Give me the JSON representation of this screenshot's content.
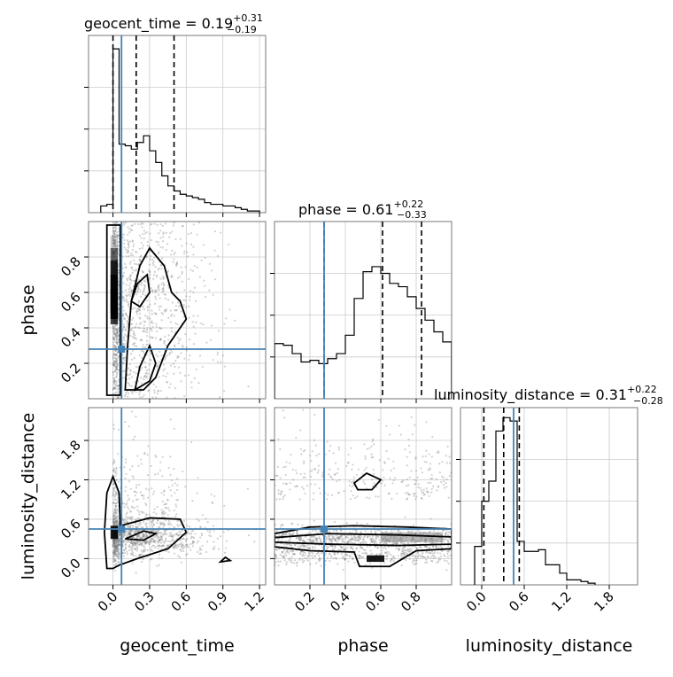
{
  "colors": {
    "truth": "#4682b4",
    "hist": "#000000",
    "grid": "#cccccc",
    "scatter": "#7a7a7a"
  },
  "chart_data": [
    {
      "type": "histogram",
      "param": "geocent_time",
      "title_main": "geocent_time = 0.19",
      "title_sup": "+0.31",
      "title_sub": "−0.19",
      "xlim": [
        -0.2,
        1.25
      ],
      "x_edges": [
        -0.1,
        -0.05,
        0.0,
        0.05,
        0.1,
        0.15,
        0.2,
        0.25,
        0.3,
        0.35,
        0.4,
        0.45,
        0.5,
        0.55,
        0.6,
        0.65,
        0.7,
        0.75,
        0.8,
        0.85,
        0.9,
        0.95,
        1.0,
        1.05,
        1.1,
        1.15,
        1.2
      ],
      "counts": [
        0.04,
        0.05,
        0.98,
        0.41,
        0.4,
        0.38,
        0.42,
        0.46,
        0.37,
        0.3,
        0.22,
        0.16,
        0.13,
        0.11,
        0.1,
        0.09,
        0.08,
        0.06,
        0.05,
        0.05,
        0.04,
        0.04,
        0.03,
        0.02,
        0.01,
        0.01
      ],
      "quantiles": [
        0.0,
        0.19,
        0.5
      ],
      "truth": 0.07
    },
    {
      "type": "histogram",
      "param": "phase",
      "title_main": "phase = 0.61",
      "title_sup": "+0.22",
      "title_sub": "−0.33",
      "xlim": [
        0.0,
        1.0
      ],
      "x_edges": [
        0.0,
        0.05,
        0.1,
        0.15,
        0.2,
        0.25,
        0.3,
        0.35,
        0.4,
        0.45,
        0.5,
        0.55,
        0.6,
        0.65,
        0.7,
        0.75,
        0.8,
        0.85,
        0.9,
        0.95,
        1.0
      ],
      "counts": [
        0.33,
        0.32,
        0.27,
        0.22,
        0.23,
        0.21,
        0.24,
        0.27,
        0.38,
        0.6,
        0.76,
        0.79,
        0.75,
        0.69,
        0.67,
        0.61,
        0.54,
        0.47,
        0.4,
        0.34
      ],
      "quantiles": [
        0.28,
        0.61,
        0.83
      ],
      "truth": 0.28
    },
    {
      "type": "histogram",
      "param": "luminosity_distance",
      "title_main": "luminosity_distance = 0.31",
      "title_sup": "+0.22",
      "title_sub": "−0.28",
      "xlim": [
        -0.3,
        2.2
      ],
      "x_edges": [
        -0.1,
        0.0,
        0.1,
        0.2,
        0.3,
        0.4,
        0.5,
        0.6,
        0.7,
        0.8,
        0.9,
        1.0,
        1.1,
        1.2,
        1.3,
        1.4,
        1.5,
        1.6
      ],
      "counts": [
        0.23,
        0.5,
        0.62,
        0.92,
        1.0,
        0.98,
        0.26,
        0.2,
        0.2,
        0.21,
        0.12,
        0.12,
        0.07,
        0.03,
        0.03,
        0.02,
        0.01
      ],
      "quantiles": [
        0.03,
        0.31,
        0.53
      ],
      "truth": 0.45
    },
    {
      "type": "scatter",
      "x_param": "geocent_time",
      "y_param": "phase",
      "xlim": [
        -0.2,
        1.25
      ],
      "ylim": [
        0.0,
        1.0
      ],
      "truth": [
        0.07,
        0.28
      ]
    },
    {
      "type": "scatter",
      "x_param": "geocent_time",
      "y_param": "luminosity_distance",
      "xlim": [
        -0.2,
        1.25
      ],
      "ylim": [
        -0.4,
        2.3
      ],
      "truth": [
        0.07,
        0.45
      ]
    },
    {
      "type": "scatter",
      "x_param": "phase",
      "y_param": "luminosity_distance",
      "xlim": [
        0.0,
        1.0
      ],
      "ylim": [
        -0.4,
        2.3
      ],
      "truth": [
        0.28,
        0.45
      ]
    }
  ],
  "axis_labels": {
    "geocent_time": "geocent_time",
    "phase": "phase",
    "luminosity_distance": "luminosity_distance"
  },
  "ticks": {
    "geocent_time": [
      "0.0",
      "0.3",
      "0.6",
      "0.9",
      "1.2"
    ],
    "phase": [
      "0.2",
      "0.4",
      "0.6",
      "0.8"
    ],
    "luminosity_distance": [
      "0.0",
      "0.6",
      "1.2",
      "1.8"
    ]
  },
  "tick_values": {
    "geocent_time": [
      0.0,
      0.3,
      0.6,
      0.9,
      1.2
    ],
    "phase": [
      0.2,
      0.4,
      0.6,
      0.8
    ],
    "luminosity_distance": [
      0.0,
      0.6,
      1.2,
      1.8
    ]
  }
}
